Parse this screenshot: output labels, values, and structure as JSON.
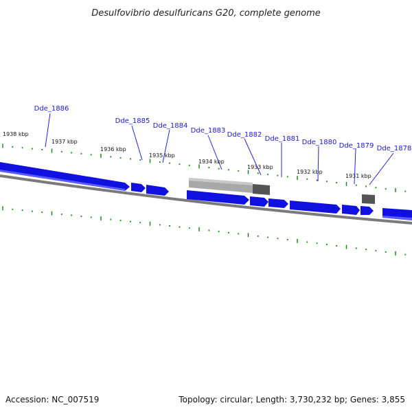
{
  "title": "Desulfovibrio desulfuricans G20, complete genome",
  "footer": {
    "accession": "Accession: NC_007519",
    "summary": "Topology: circular; Length: 3,730,232 bp; Genes: 3,855"
  },
  "colors": {
    "gene": "#1010e0",
    "gene_highlight": "#5a5aff",
    "tick": "#1a8a1a",
    "backbone": "#7a7a7a",
    "label": "#1a1acc",
    "leader": "#2020dd",
    "gray_feature": "#a8a8a8",
    "dark_feature": "#555555"
  },
  "kbp_labels": [
    "1938 kbp",
    "1937 kbp",
    "1936 kbp",
    "1935 kbp",
    "1934 kbp",
    "1933 kbp",
    "1932 kbp",
    "1931 kbp"
  ],
  "genes": [
    {
      "name": "Dde_1886"
    },
    {
      "name": "Dde_1885"
    },
    {
      "name": "Dde_1884"
    },
    {
      "name": "Dde_1883"
    },
    {
      "name": "Dde_1882"
    },
    {
      "name": "Dde_1881"
    },
    {
      "name": "Dde_1880"
    },
    {
      "name": "Dde_1879"
    },
    {
      "name": "Dde_1878"
    }
  ]
}
